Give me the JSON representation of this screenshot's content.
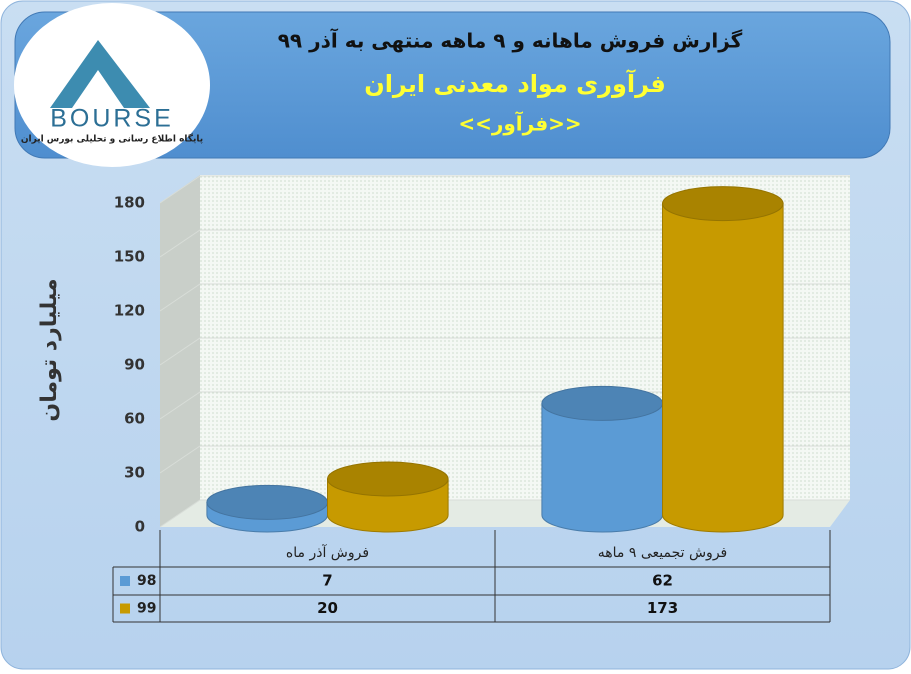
{
  "logo": {
    "name": "BOURSE",
    "tagline": "پایگاه اطلاع رسانی و تحلیلی بورس ایران"
  },
  "chart_data": {
    "type": "bar",
    "title": "گزارش فروش ماهانه و ۹ ماهه منتهی به آذر ۹۹",
    "subtitle": "فرآوری مواد معدنی ایران",
    "symbol": "<<فرآور>>",
    "y_label": "میلیارد تومان",
    "categories": [
      "فروش آذر  ماه",
      "فروش تجمیعی ۹ ماهه"
    ],
    "series": [
      {
        "name": "98",
        "color": "#5b9bd5",
        "values": [
          7,
          62
        ]
      },
      {
        "name": "99",
        "color": "#c79a00",
        "values": [
          20,
          173
        ]
      }
    ],
    "ylim": [
      0,
      180
    ],
    "yticks": [
      0,
      30,
      60,
      90,
      120,
      150,
      180
    ],
    "grid": true
  }
}
